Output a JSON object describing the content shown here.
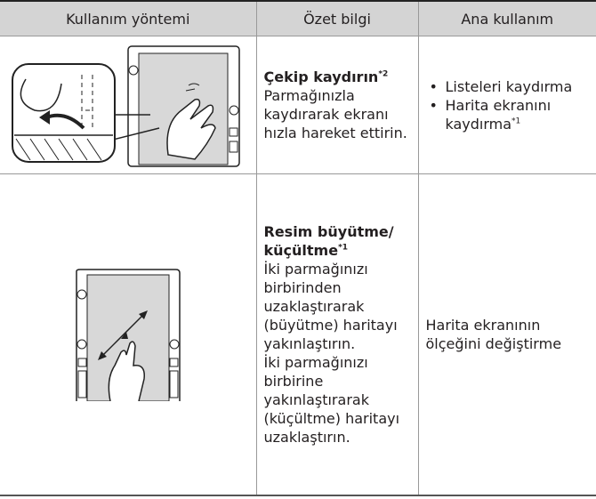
{
  "table": {
    "header": [
      "Kullanım yöntemi",
      "Özet bilgi",
      "Ana kullanım"
    ],
    "rows": [
      {
        "title": "Çekip kaydırın",
        "title_note": "*2",
        "description": [
          "Parmağınızla kaydırarak ekranı hızla hareket ettirin."
        ],
        "usage": [
          {
            "text": "Listeleri kaydırma"
          },
          {
            "text": "Harita ekranını kaydırma",
            "note": "*1"
          }
        ]
      },
      {
        "title": "Resim büyütme/ küçültme",
        "title_note": "*1",
        "description": [
          "İki parmağınızı birbirinden uzaklaştırarak (büyütme) haritayı yakınlaştırın.",
          "İki parmağınızı birbirine yakınlaştırarak (küçültme) haritayı uzaklaştırın."
        ],
        "usage_text": "Harita ekranının ölçeğini değiştirme"
      }
    ]
  }
}
